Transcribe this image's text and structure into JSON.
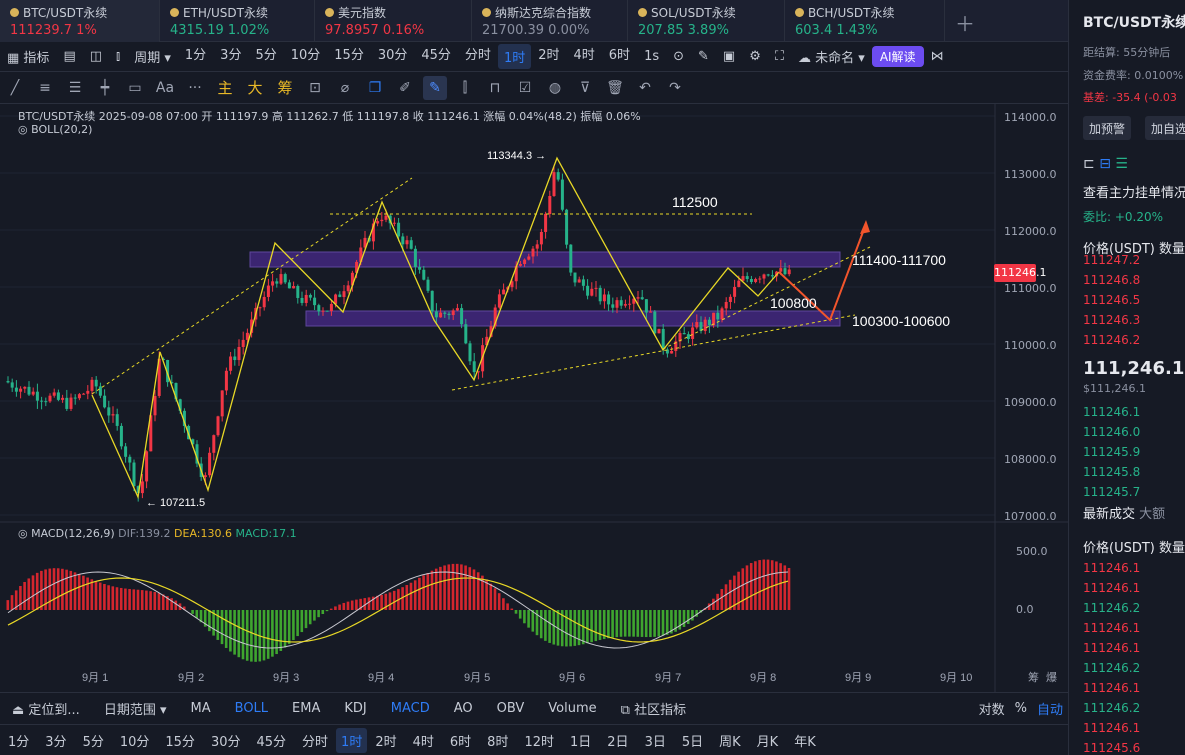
{
  "tabs": [
    {
      "sym": "BTC/USDT永续",
      "price": "111239.7",
      "chg": "1%",
      "dir": "red",
      "active": true
    },
    {
      "sym": "ETH/USDT永续",
      "price": "4315.19",
      "chg": "1.02%",
      "dir": "green"
    },
    {
      "sym": "美元指数",
      "price": "97.8957",
      "chg": "0.16%",
      "dir": "red"
    },
    {
      "sym": "纳斯达克综合指数",
      "price": "21700.39",
      "chg": "0.00%",
      "dir": "muted"
    },
    {
      "sym": "SOL/USDT永续",
      "price": "207.85",
      "chg": "3.89%",
      "dir": "green"
    },
    {
      "sym": "BCH/USDT永续",
      "price": "603.4",
      "chg": "1.43%",
      "dir": "green"
    }
  ],
  "toolbar": {
    "indicator": "指标",
    "period": "周期",
    "intervals": [
      "1分",
      "3分",
      "5分",
      "10分",
      "15分",
      "30分",
      "45分",
      "分时",
      "1时",
      "2时",
      "4时",
      "6时"
    ],
    "selected": "1时",
    "seconds": "1s",
    "layout_name": "未命名",
    "ai": "AI解读"
  },
  "drawtools": [
    "主",
    "大",
    "筹"
  ],
  "info": {
    "line1": "BTC/USDT永续  2025-09-08 07:00  开 111197.9  高 111262.7  低 111197.8  收 111246.1  涨幅 0.04%(48.2)  振幅 0.06%",
    "line2": "BOLL(20,2)",
    "macd_label": "MACD(12,26,9)",
    "dif": "DIF:139.2",
    "dea": "DEA:130.6",
    "macd": "MACD:17.1"
  },
  "annotations": {
    "high": "113344.3 →",
    "low": "← 107211.5",
    "l1": "112500",
    "l2": "111400-111700",
    "l3": "100800",
    "l4": "100300-100600"
  },
  "y_ticks": [
    "114000.0",
    "113000.0",
    "112000.0",
    "111000.0",
    "110000.0",
    "109000.0",
    "108000.0",
    "107000.0"
  ],
  "macd_ticks": [
    "500.0",
    "0.0"
  ],
  "last_price": "111246.1",
  "x_ticks": [
    "9月 1",
    "9月 2",
    "9月 3",
    "9月 4",
    "9月 5",
    "9月 6",
    "9月 7",
    "9月 8",
    "9月 9",
    "9月 10"
  ],
  "bottom": {
    "locate": "定位到...",
    "range": "日期范围",
    "inds": [
      "MA",
      "BOLL",
      "EMA",
      "KDJ",
      "MACD",
      "AO",
      "OBV",
      "Volume"
    ],
    "community": "社区指标",
    "right": [
      "对数",
      "%",
      "自动"
    ],
    "intervals": [
      "1分",
      "3分",
      "5分",
      "10分",
      "15分",
      "30分",
      "45分",
      "分时",
      "1时",
      "2时",
      "4时",
      "6时",
      "8时",
      "12时",
      "1日",
      "2日",
      "3日",
      "5日",
      "周K",
      "月K",
      "年K"
    ],
    "selected": "1时",
    "corner": [
      "筹",
      "爆"
    ]
  },
  "side": {
    "title": "BTC/USDT永续",
    "settle": "距结算: 55分钟后",
    "rate": "资金费率: 0.0100%",
    "basis": "基差: -35.4 (-0.03",
    "alert_btn": "加预警",
    "fav_btn": "加自选",
    "orders": "查看主力挂单情况",
    "weibi": "委比: +0.20%",
    "col_price": "价格(USDT)",
    "col_qty": "数量",
    "asks": [
      "111247.2",
      "111246.8",
      "111246.5",
      "111246.3",
      "111246.2"
    ],
    "big": "111,246.1",
    "usd": "$111,246.1",
    "bids": [
      "111246.1",
      "111246.0",
      "111245.9",
      "111245.8",
      "111245.7"
    ],
    "trades_tab": "最新成交",
    "big_tab": "大额",
    "trades": [
      [
        "111246.1",
        "r"
      ],
      [
        "111246.1",
        "r"
      ],
      [
        "111246.2",
        "g"
      ],
      [
        "111246.1",
        "r"
      ],
      [
        "111246.1",
        "r"
      ],
      [
        "111246.2",
        "g"
      ],
      [
        "111246.1",
        "r"
      ],
      [
        "111246.2",
        "g"
      ],
      [
        "111246.1",
        "r"
      ],
      [
        "111245.6",
        "r"
      ]
    ]
  }
}
